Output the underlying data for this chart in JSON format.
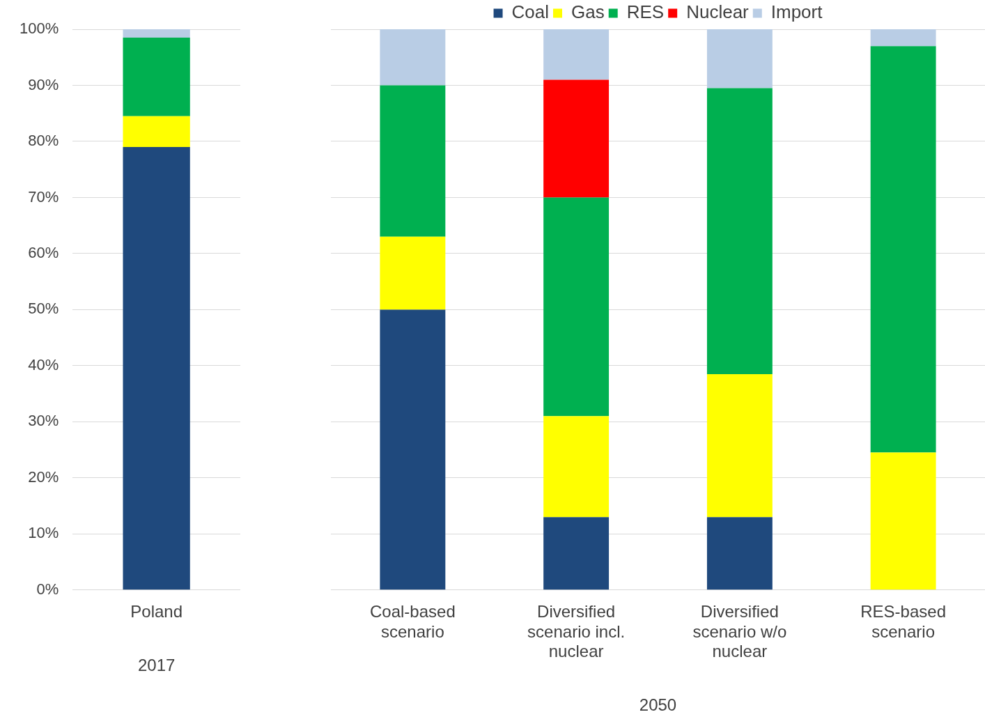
{
  "chart_data": [
    {
      "type": "bar",
      "stacked": true,
      "categories": [
        "Poland"
      ],
      "xlabel": "2017",
      "ylim": [
        0,
        100
      ],
      "yticks": [
        {
          "value": 0,
          "label": "0%"
        },
        {
          "value": 10,
          "label": "10%"
        },
        {
          "value": 20,
          "label": "20%"
        },
        {
          "value": 30,
          "label": "30%"
        },
        {
          "value": 40,
          "label": "40%"
        },
        {
          "value": 50,
          "label": "50%"
        },
        {
          "value": 60,
          "label": "60%"
        },
        {
          "value": 70,
          "label": "70%"
        },
        {
          "value": 80,
          "label": "80%"
        },
        {
          "value": 90,
          "label": "90%"
        },
        {
          "value": 100,
          "label": "100%"
        }
      ],
      "grid": "y",
      "legend": false,
      "series": [
        {
          "color": "#1f497d",
          "values": [
            79
          ]
        },
        {
          "color": "#ffff00",
          "values": [
            5.5
          ]
        },
        {
          "color": "#00b050",
          "values": [
            14
          ]
        },
        {
          "color": "#ff0000",
          "values": [
            0
          ]
        },
        {
          "color": "#b9cde5",
          "values": [
            1.5
          ]
        }
      ]
    },
    {
      "type": "bar",
      "stacked": true,
      "categories": [
        "Coal-based scenario",
        "Diversified scenario incl. nuclear",
        "Diversified scenario w/o nuclear",
        "RES-based scenario"
      ],
      "xlabel": "2050",
      "ylim": [
        0,
        100
      ],
      "yticks": [
        0,
        10,
        20,
        30,
        40,
        50,
        60,
        70,
        80,
        90,
        100
      ],
      "tick_labels": "x",
      "grid": "y",
      "legend": "top",
      "series": [
        {
          "name": "Coal",
          "color": "#1f497d",
          "values": [
            50,
            13,
            13,
            0
          ]
        },
        {
          "name": "Gas",
          "color": "#ffff00",
          "values": [
            13,
            18,
            25.5,
            24.5
          ]
        },
        {
          "name": "RES",
          "color": "#00b050",
          "values": [
            27,
            39,
            51,
            72.5
          ]
        },
        {
          "name": "Nuclear",
          "color": "#ff0000",
          "values": [
            0,
            21,
            0,
            0
          ]
        },
        {
          "name": "Import",
          "color": "#b9cde5",
          "values": [
            10,
            9,
            10.5,
            3
          ]
        }
      ]
    }
  ]
}
